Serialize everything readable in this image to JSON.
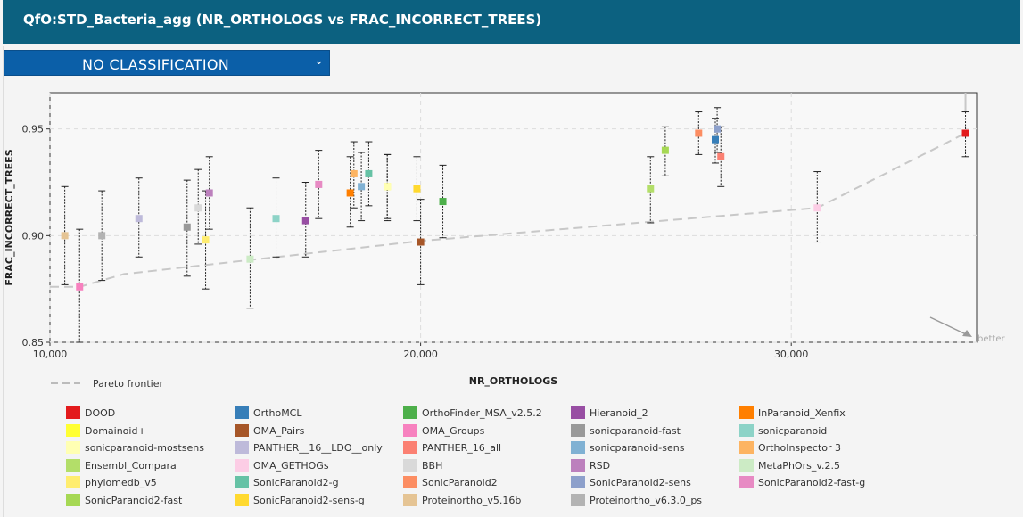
{
  "header": {
    "title": "QfO:STD_Bacteria_agg (NR_ORTHOLOGS vs FRAC_INCORRECT_TREES)"
  },
  "classification_select": {
    "value": "NO CLASSIFICATION"
  },
  "better_label": "better",
  "chart_data": {
    "type": "scatter",
    "xlabel": "NR_ORTHOLOGS",
    "ylabel": "FRAC_INCORRECT_TREES",
    "xlim": [
      10000,
      35000
    ],
    "ylim": [
      0.85,
      0.967
    ],
    "x_ticks": [
      10000,
      20000,
      30000
    ],
    "x_tick_labels": [
      "10,000",
      "20,000",
      "30,000"
    ],
    "y_ticks": [
      0.85,
      0.9,
      0.95
    ],
    "y_tick_labels": [
      "0.85",
      "0.90",
      "0.95"
    ],
    "grid": true,
    "legend_position": "bottom",
    "pareto": {
      "label": "Pareto frontier",
      "points": [
        [
          10000,
          0.876
        ],
        [
          10800,
          0.876
        ],
        [
          12000,
          0.882
        ],
        [
          20000,
          0.8975
        ],
        [
          26200,
          0.9065
        ],
        [
          30700,
          0.913
        ],
        [
          34700,
          0.948
        ]
      ]
    },
    "series": [
      {
        "name": "DOOD",
        "color": "#e31a1c",
        "x": 34700,
        "y": 0.948,
        "ylo": 0.937,
        "yhi": 0.958
      },
      {
        "name": "OrthoMCL",
        "color": "#377eb8",
        "x": 27950,
        "y": 0.945,
        "ylo": 0.934,
        "yhi": 0.955
      },
      {
        "name": "OrthoFinder_MSA_v2.5.2",
        "color": "#4daf4a",
        "x": 20600,
        "y": 0.916,
        "ylo": 0.899,
        "yhi": 0.933
      },
      {
        "name": "Hieranoid_2",
        "color": "#984ea3",
        "x": 16900,
        "y": 0.907,
        "ylo": 0.89,
        "yhi": 0.925
      },
      {
        "name": "InParanoid_Xenfix",
        "color": "#ff7f00",
        "x": 18100,
        "y": 0.92,
        "ylo": 0.904,
        "yhi": 0.937
      },
      {
        "name": "Domainoid+",
        "color": "#ffff33",
        "x": 19100,
        "y": 0.923,
        "ylo": 0.907,
        "yhi": 0.938
      },
      {
        "name": "OMA_Pairs",
        "color": "#a65628",
        "x": 20000,
        "y": 0.897,
        "ylo": 0.877,
        "yhi": 0.917
      },
      {
        "name": "OMA_Groups",
        "color": "#f781bf",
        "x": 10800,
        "y": 0.876,
        "ylo": 0.85,
        "yhi": 0.903
      },
      {
        "name": "PANTHER_16_all",
        "color": "#fb8072",
        "x": 28100,
        "y": 0.937,
        "ylo": 0.923,
        "yhi": 0.951
      },
      {
        "name": "sonicparanoid-fast",
        "color": "#999999",
        "x": 13700,
        "y": 0.904,
        "ylo": 0.881,
        "yhi": 0.926
      },
      {
        "name": "sonicparanoid",
        "color": "#8dd3c7",
        "x": 16100,
        "y": 0.908,
        "ylo": 0.89,
        "yhi": 0.927
      },
      {
        "name": "sonicparanoid-mostsens",
        "color": "#ffffb3",
        "x": 19100,
        "y": 0.923,
        "ylo": 0.908,
        "yhi": 0.938
      },
      {
        "name": "PANTHER__16__LDO__only",
        "color": "#bebada",
        "x": 12400,
        "y": 0.908,
        "ylo": 0.89,
        "yhi": 0.927
      },
      {
        "name": "sonicparanoid-sens",
        "color": "#80b1d3",
        "x": 18400,
        "y": 0.923,
        "ylo": 0.907,
        "yhi": 0.939
      },
      {
        "name": "OrthoInspector 3",
        "color": "#fdb462",
        "x": 18200,
        "y": 0.929,
        "ylo": 0.913,
        "yhi": 0.944
      },
      {
        "name": "Ensembl_Compara",
        "color": "#b3de69",
        "x": 26200,
        "y": 0.922,
        "ylo": 0.906,
        "yhi": 0.937
      },
      {
        "name": "OMA_GETHOGs",
        "color": "#fccde5",
        "x": 30700,
        "y": 0.913,
        "ylo": 0.897,
        "yhi": 0.93
      },
      {
        "name": "BBH",
        "color": "#d9d9d9",
        "x": 14000,
        "y": 0.913,
        "ylo": 0.896,
        "yhi": 0.931
      },
      {
        "name": "RSD",
        "color": "#bc80bd",
        "x": 14300,
        "y": 0.92,
        "ylo": 0.903,
        "yhi": 0.937
      },
      {
        "name": "MetaPhOrs_v.2.5",
        "color": "#ccebc5",
        "x": 15400,
        "y": 0.889,
        "ylo": 0.866,
        "yhi": 0.913
      },
      {
        "name": "phylomedb_v5",
        "color": "#ffed6f",
        "x": 14200,
        "y": 0.898,
        "ylo": 0.875,
        "yhi": 0.921
      },
      {
        "name": "SonicParanoid2-g",
        "color": "#66c2a5",
        "x": 18600,
        "y": 0.929,
        "ylo": 0.914,
        "yhi": 0.944
      },
      {
        "name": "SonicParanoid2",
        "color": "#fc8d62",
        "x": 27500,
        "y": 0.948,
        "ylo": 0.938,
        "yhi": 0.958
      },
      {
        "name": "SonicParanoid2-sens",
        "color": "#8da0cb",
        "x": 28000,
        "y": 0.95,
        "ylo": 0.939,
        "yhi": 0.96
      },
      {
        "name": "SonicParanoid2-fast-g",
        "color": "#e78ac3",
        "x": 17250,
        "y": 0.924,
        "ylo": 0.908,
        "yhi": 0.94
      },
      {
        "name": "SonicParanoid2-fast",
        "color": "#a6d854",
        "x": 26600,
        "y": 0.94,
        "ylo": 0.928,
        "yhi": 0.951
      },
      {
        "name": "SonicParanoid2-sens-g",
        "color": "#ffd92f",
        "x": 19900,
        "y": 0.922,
        "ylo": 0.907,
        "yhi": 0.937
      },
      {
        "name": "Proteinortho_v5.16b",
        "color": "#e5c494",
        "x": 10400,
        "y": 0.9,
        "ylo": 0.877,
        "yhi": 0.923
      },
      {
        "name": "Proteinortho_v6.3.0_ps",
        "color": "#b3b3b3",
        "x": 11400,
        "y": 0.9,
        "ylo": 0.879,
        "yhi": 0.921
      }
    ]
  },
  "legend_layout": {
    "columns": [
      [
        "DOOD",
        "Domainoid+",
        "sonicparanoid-mostsens",
        "Ensembl_Compara",
        "phylomedb_v5",
        "SonicParanoid2-fast"
      ],
      [
        "OrthoMCL",
        "OMA_Pairs",
        "PANTHER__16__LDO__only",
        "OMA_GETHOGs",
        "SonicParanoid2-g",
        "SonicParanoid2-sens-g"
      ],
      [
        "OrthoFinder_MSA_v2.5.2",
        "OMA_Groups",
        "PANTHER_16_all",
        "BBH",
        "SonicParanoid2",
        "Proteinortho_v5.16b"
      ],
      [
        "Hieranoid_2",
        "sonicparanoid-fast",
        "sonicparanoid-sens",
        "RSD",
        "SonicParanoid2-sens",
        "Proteinortho_v6.3.0_ps"
      ],
      [
        "InParanoid_Xenfix",
        "sonicparanoid",
        "OrthoInspector 3",
        "MetaPhOrs_v.2.5",
        "SonicParanoid2-fast-g"
      ]
    ]
  }
}
